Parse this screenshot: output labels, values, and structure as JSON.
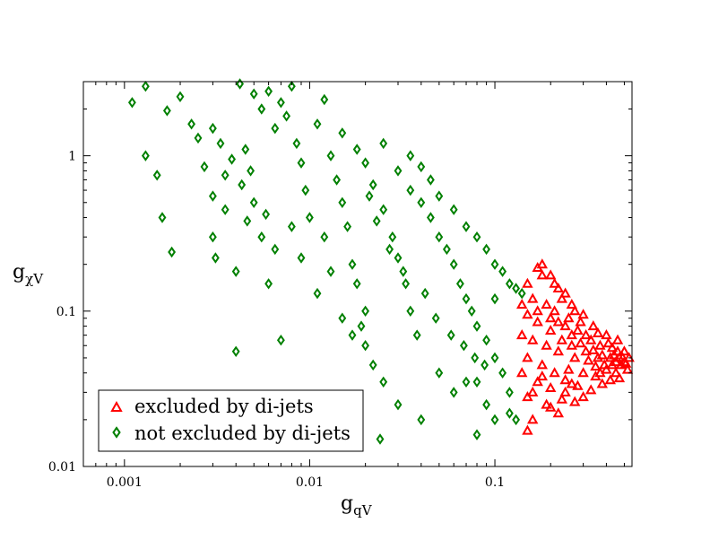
{
  "chart_data": {
    "type": "scatter",
    "title": "",
    "xlabel": {
      "base": "g",
      "subscript": "qV"
    },
    "ylabel": {
      "base": "g",
      "subscript_greek": "χ",
      "subscript": "V"
    },
    "x_scale": "log",
    "y_scale": "log",
    "xlim": [
      0.0006,
      0.55
    ],
    "ylim": [
      0.01,
      3.0
    ],
    "x_ticks": [
      {
        "value": 0.001,
        "label": "0.001"
      },
      {
        "value": 0.01,
        "label": "0.01"
      },
      {
        "value": 0.1,
        "label": "0.1"
      }
    ],
    "y_ticks": [
      {
        "value": 0.01,
        "label": "0.01"
      },
      {
        "value": 0.1,
        "label": "0.1"
      },
      {
        "value": 1,
        "label": "1"
      }
    ],
    "grid": false,
    "legend": {
      "position": "bottom-left"
    },
    "series": [
      {
        "name": "excluded by di-jets",
        "marker": "triangle",
        "color": "#ff0000",
        "points": [
          [
            0.15,
            0.15
          ],
          [
            0.17,
            0.19
          ],
          [
            0.18,
            0.2
          ],
          [
            0.2,
            0.17
          ],
          [
            0.22,
            0.14
          ],
          [
            0.16,
            0.12
          ],
          [
            0.19,
            0.11
          ],
          [
            0.23,
            0.12
          ],
          [
            0.26,
            0.11
          ],
          [
            0.3,
            0.095
          ],
          [
            0.17,
            0.085
          ],
          [
            0.2,
            0.09
          ],
          [
            0.24,
            0.08
          ],
          [
            0.28,
            0.075
          ],
          [
            0.34,
            0.08
          ],
          [
            0.4,
            0.07
          ],
          [
            0.46,
            0.065
          ],
          [
            0.16,
            0.065
          ],
          [
            0.19,
            0.06
          ],
          [
            0.22,
            0.055
          ],
          [
            0.26,
            0.06
          ],
          [
            0.31,
            0.055
          ],
          [
            0.36,
            0.05
          ],
          [
            0.42,
            0.05
          ],
          [
            0.48,
            0.045
          ],
          [
            0.15,
            0.05
          ],
          [
            0.18,
            0.045
          ],
          [
            0.21,
            0.04
          ],
          [
            0.25,
            0.042
          ],
          [
            0.3,
            0.04
          ],
          [
            0.35,
            0.038
          ],
          [
            0.4,
            0.042
          ],
          [
            0.45,
            0.04
          ],
          [
            0.5,
            0.047
          ],
          [
            0.17,
            0.035
          ],
          [
            0.2,
            0.032
          ],
          [
            0.24,
            0.03
          ],
          [
            0.28,
            0.033
          ],
          [
            0.33,
            0.031
          ],
          [
            0.38,
            0.034
          ],
          [
            0.15,
            0.028
          ],
          [
            0.19,
            0.025
          ],
          [
            0.22,
            0.022
          ],
          [
            0.27,
            0.026
          ],
          [
            0.16,
            0.02
          ],
          [
            0.15,
            0.017
          ],
          [
            0.2,
            0.024
          ],
          [
            0.23,
            0.027
          ],
          [
            0.3,
            0.028
          ],
          [
            0.14,
            0.11
          ],
          [
            0.14,
            0.07
          ],
          [
            0.15,
            0.095
          ],
          [
            0.21,
            0.1
          ],
          [
            0.25,
            0.09
          ],
          [
            0.29,
            0.085
          ],
          [
            0.33,
            0.065
          ],
          [
            0.37,
            0.06
          ],
          [
            0.43,
            0.058
          ],
          [
            0.5,
            0.055
          ],
          [
            0.53,
            0.05
          ],
          [
            0.52,
            0.042
          ],
          [
            0.47,
            0.037
          ],
          [
            0.42,
            0.036
          ],
          [
            0.44,
            0.052
          ],
          [
            0.39,
            0.045
          ],
          [
            0.35,
            0.044
          ],
          [
            0.32,
            0.048
          ],
          [
            0.27,
            0.05
          ],
          [
            0.23,
            0.065
          ],
          [
            0.2,
            0.075
          ],
          [
            0.18,
            0.17
          ],
          [
            0.21,
            0.15
          ],
          [
            0.24,
            0.13
          ],
          [
            0.27,
            0.1
          ],
          [
            0.31,
            0.07
          ],
          [
            0.36,
            0.072
          ],
          [
            0.41,
            0.062
          ],
          [
            0.46,
            0.055
          ],
          [
            0.49,
            0.05
          ],
          [
            0.38,
            0.052
          ],
          [
            0.34,
            0.056
          ],
          [
            0.29,
            0.062
          ],
          [
            0.26,
            0.07
          ],
          [
            0.22,
            0.085
          ],
          [
            0.17,
            0.1
          ],
          [
            0.14,
            0.04
          ],
          [
            0.16,
            0.03
          ],
          [
            0.18,
            0.038
          ],
          [
            0.24,
            0.036
          ],
          [
            0.26,
            0.034
          ],
          [
            0.43,
            0.045
          ],
          [
            0.47,
            0.05
          ],
          [
            0.51,
            0.046
          ],
          [
            0.45,
            0.047
          ],
          [
            0.37,
            0.04
          ]
        ]
      },
      {
        "name": "not excluded by di-jets",
        "marker": "diamond",
        "color": "#008000",
        "points": [
          [
            0.0011,
            2.2
          ],
          [
            0.0013,
            1.0
          ],
          [
            0.0015,
            0.75
          ],
          [
            0.0016,
            0.4
          ],
          [
            0.0018,
            0.24
          ],
          [
            0.0013,
            2.8
          ],
          [
            0.0017,
            1.95
          ],
          [
            0.002,
            2.4
          ],
          [
            0.0023,
            1.6
          ],
          [
            0.0025,
            1.3
          ],
          [
            0.0027,
            0.85
          ],
          [
            0.003,
            0.55
          ],
          [
            0.003,
            0.3
          ],
          [
            0.0031,
            0.22
          ],
          [
            0.0035,
            0.75
          ],
          [
            0.0035,
            0.45
          ],
          [
            0.004,
            0.18
          ],
          [
            0.004,
            0.055
          ],
          [
            0.0045,
            1.1
          ],
          [
            0.0048,
            0.8
          ],
          [
            0.005,
            0.5
          ],
          [
            0.0055,
            0.3
          ],
          [
            0.006,
            0.15
          ],
          [
            0.0042,
            2.9
          ],
          [
            0.005,
            2.5
          ],
          [
            0.0055,
            2.0
          ],
          [
            0.006,
            2.6
          ],
          [
            0.0065,
            1.5
          ],
          [
            0.007,
            2.2
          ],
          [
            0.0075,
            1.8
          ],
          [
            0.008,
            2.8
          ],
          [
            0.0085,
            1.2
          ],
          [
            0.009,
            0.9
          ],
          [
            0.0095,
            0.6
          ],
          [
            0.01,
            0.4
          ],
          [
            0.007,
            0.065
          ],
          [
            0.011,
            1.6
          ],
          [
            0.012,
            2.3
          ],
          [
            0.013,
            1.0
          ],
          [
            0.014,
            0.7
          ],
          [
            0.015,
            0.5
          ],
          [
            0.016,
            0.35
          ],
          [
            0.017,
            0.2
          ],
          [
            0.018,
            0.15
          ],
          [
            0.02,
            0.1
          ],
          [
            0.015,
            1.4
          ],
          [
            0.018,
            1.1
          ],
          [
            0.02,
            0.9
          ],
          [
            0.022,
            0.65
          ],
          [
            0.025,
            0.45
          ],
          [
            0.028,
            0.3
          ],
          [
            0.03,
            0.22
          ],
          [
            0.033,
            0.15
          ],
          [
            0.035,
            0.1
          ],
          [
            0.038,
            0.07
          ],
          [
            0.02,
            0.06
          ],
          [
            0.022,
            0.045
          ],
          [
            0.025,
            0.035
          ],
          [
            0.03,
            0.025
          ],
          [
            0.024,
            0.015
          ],
          [
            0.03,
            0.8
          ],
          [
            0.035,
            0.6
          ],
          [
            0.04,
            0.5
          ],
          [
            0.045,
            0.4
          ],
          [
            0.05,
            0.3
          ],
          [
            0.055,
            0.25
          ],
          [
            0.06,
            0.2
          ],
          [
            0.065,
            0.15
          ],
          [
            0.07,
            0.12
          ],
          [
            0.075,
            0.1
          ],
          [
            0.08,
            0.08
          ],
          [
            0.09,
            0.065
          ],
          [
            0.1,
            0.05
          ],
          [
            0.11,
            0.04
          ],
          [
            0.12,
            0.03
          ],
          [
            0.08,
            0.035
          ],
          [
            0.09,
            0.025
          ],
          [
            0.1,
            0.02
          ],
          [
            0.12,
            0.022
          ],
          [
            0.13,
            0.02
          ],
          [
            0.05,
            0.04
          ],
          [
            0.06,
            0.03
          ],
          [
            0.07,
            0.035
          ],
          [
            0.08,
            0.016
          ],
          [
            0.04,
            0.02
          ],
          [
            0.06,
            0.45
          ],
          [
            0.07,
            0.35
          ],
          [
            0.08,
            0.3
          ],
          [
            0.09,
            0.25
          ],
          [
            0.1,
            0.2
          ],
          [
            0.11,
            0.18
          ],
          [
            0.12,
            0.15
          ],
          [
            0.13,
            0.14
          ],
          [
            0.14,
            0.13
          ],
          [
            0.1,
            0.12
          ],
          [
            0.05,
            0.55
          ],
          [
            0.045,
            0.7
          ],
          [
            0.04,
            0.85
          ],
          [
            0.035,
            1.0
          ],
          [
            0.025,
            1.2
          ],
          [
            0.012,
            0.3
          ],
          [
            0.013,
            0.18
          ],
          [
            0.015,
            0.09
          ],
          [
            0.017,
            0.07
          ],
          [
            0.019,
            0.08
          ],
          [
            0.009,
            0.22
          ],
          [
            0.011,
            0.13
          ],
          [
            0.008,
            0.35
          ],
          [
            0.0065,
            0.25
          ],
          [
            0.0058,
            0.42
          ],
          [
            0.003,
            1.5
          ],
          [
            0.0033,
            1.2
          ],
          [
            0.0038,
            0.95
          ],
          [
            0.0043,
            0.65
          ],
          [
            0.0046,
            0.38
          ],
          [
            0.021,
            0.55
          ],
          [
            0.023,
            0.38
          ],
          [
            0.027,
            0.25
          ],
          [
            0.032,
            0.18
          ],
          [
            0.042,
            0.13
          ],
          [
            0.048,
            0.09
          ],
          [
            0.058,
            0.07
          ],
          [
            0.068,
            0.06
          ],
          [
            0.078,
            0.05
          ],
          [
            0.088,
            0.045
          ]
        ]
      }
    ]
  }
}
